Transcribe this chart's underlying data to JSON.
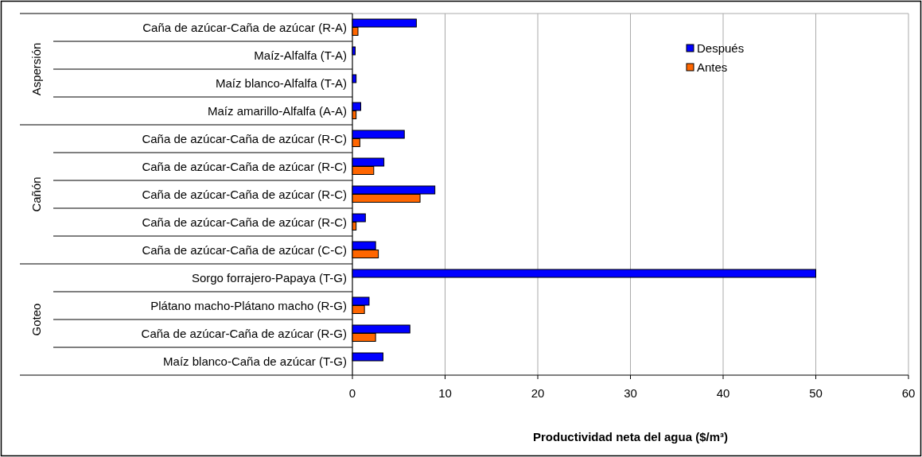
{
  "chart_data": {
    "type": "bar",
    "orientation": "horizontal",
    "xlabel": "Productividad neta del agua ($/m³)",
    "categories": [
      "Caña de azúcar-Caña de azúcar (R-A)",
      "Maíz-Alfalfa (T-A)",
      "Maíz blanco-Alfalfa (T-A)",
      "Maíz amarillo-Alfalfa (A-A)",
      "Caña de azúcar-Caña de azúcar (R-C)",
      "Caña de azúcar-Caña de azúcar (R-C)",
      "Caña de azúcar-Caña de azúcar (R-C)",
      "Caña de azúcar-Caña de azúcar (R-C)",
      "Caña de azúcar-Caña de azúcar (C-C)",
      "Sorgo forrajero-Papaya (T-G)",
      "Plátano macho-Plátano macho (R-G)",
      "Caña de azúcar-Caña de azúcar (R-G)",
      "Maíz blanco-Caña de azúcar (T-G)"
    ],
    "series": [
      {
        "name": "Después",
        "color": "#0000ff",
        "values": [
          6.9,
          0.3,
          0.4,
          0.9,
          5.6,
          3.4,
          8.9,
          1.4,
          2.5,
          50,
          1.8,
          6.2,
          3.3
        ]
      },
      {
        "name": "Antes",
        "color": "#ff6600",
        "values": [
          0.6,
          null,
          null,
          0.4,
          0.8,
          2.3,
          7.3,
          0.4,
          2.8,
          null,
          1.3,
          2.5,
          null
        ]
      }
    ],
    "xlim": [
      0,
      60
    ],
    "xticks": [
      0,
      10,
      20,
      30,
      40,
      50,
      60
    ],
    "grid": "x",
    "legend": "top right",
    "annotations": [
      "Aspersión",
      "Cañón",
      "Goteo"
    ]
  }
}
